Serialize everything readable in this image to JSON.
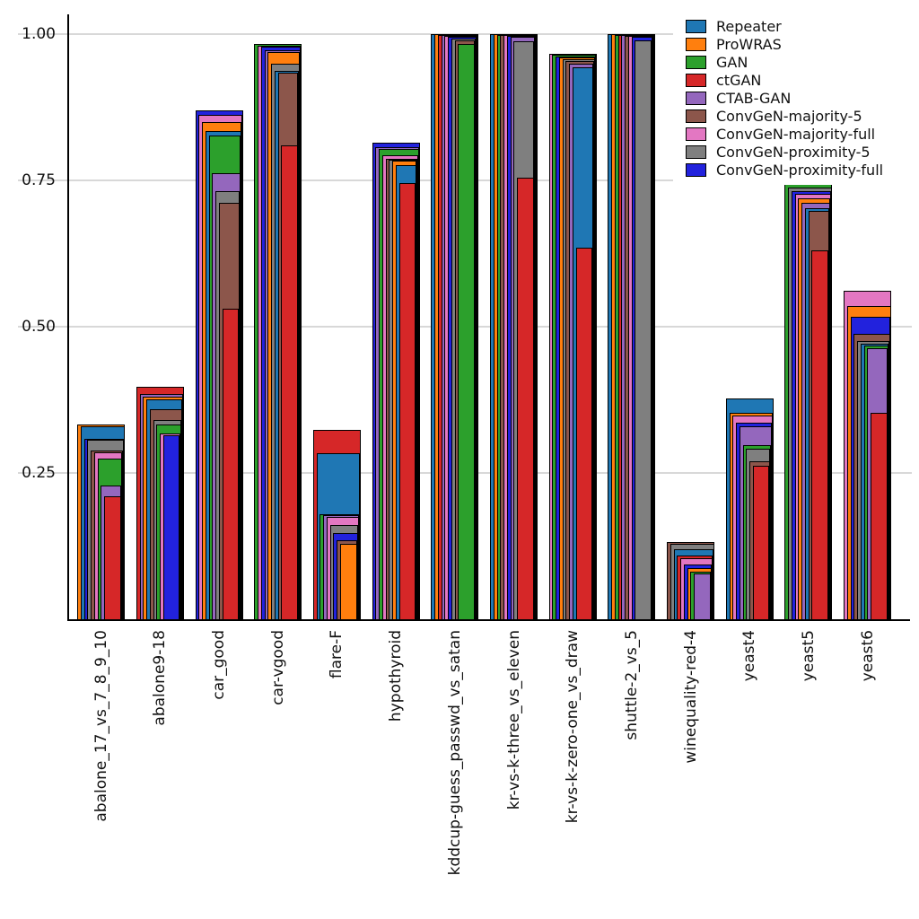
{
  "figure": {
    "background": "#ffffff",
    "grid_color": "#d8d8d8",
    "axis_color": "#000000"
  },
  "chart_data": {
    "type": "bar",
    "style": "overlaid-nested-bars-per-category-sorted-descending",
    "title": "",
    "xlabel": "",
    "ylabel": "",
    "ylim": [
      0,
      1.02
    ],
    "grid": "horizontal",
    "legend_position": "top-right",
    "yticks": [
      {
        "value": 0.25,
        "label": "0.25"
      },
      {
        "value": 0.5,
        "label": "0.50"
      },
      {
        "value": 0.75,
        "label": "0.75"
      },
      {
        "value": 1.0,
        "label": "1.00"
      }
    ],
    "categories": [
      "abalone_17_vs_7_8_9_10",
      "abalone9-18",
      "car_good",
      "car-vgood",
      "flare-F",
      "hypothyroid",
      "kddcup-guess_passwd_vs_satan",
      "kr-vs-k-three_vs_eleven",
      "kr-vs-k-zero-one_vs_draw",
      "shuttle-2_vs_5",
      "winequality-red-4",
      "yeast4",
      "yeast5",
      "yeast6"
    ],
    "series": [
      {
        "name": "Repeater",
        "color": "#1f77b4",
        "values": [
          0.329,
          0.376,
          0.835,
          0.937,
          0.283,
          0.776,
          1.0,
          1.0,
          0.944,
          1.0,
          0.119,
          0.377,
          0.703,
          0.471
        ]
      },
      {
        "name": "ProWRAS",
        "color": "#ff7f0e",
        "values": [
          0.333,
          0.38,
          0.849,
          0.97,
          0.129,
          0.784,
          0.9995,
          0.9995,
          0.96,
          0.9995,
          0.088,
          0.352,
          0.72,
          0.536
        ]
      },
      {
        "name": "GAN",
        "color": "#2ca02c",
        "values": [
          0.275,
          0.333,
          0.827,
          0.983,
          0.18,
          0.803,
          0.983,
          0.999,
          0.964,
          0.999,
          0.082,
          0.298,
          0.746,
          0.468
        ]
      },
      {
        "name": "ctGAN",
        "color": "#d62728",
        "values": [
          0.21,
          0.398,
          0.531,
          0.81,
          0.324,
          0.746,
          0.999,
          0.755,
          0.635,
          0.9985,
          0.109,
          0.263,
          0.63,
          0.353
        ]
      },
      {
        "name": "CTAB-GAN",
        "color": "#9467bd",
        "values": [
          0.229,
          0.385,
          0.762,
          0.973,
          0.178,
          0.807,
          0.9985,
          0.995,
          0.949,
          0.998,
          0.078,
          0.33,
          0.712,
          0.463
        ]
      },
      {
        "name": "ConvGeN-majority-5",
        "color": "#8c564b",
        "values": [
          0.289,
          0.359,
          0.712,
          0.934,
          0.135,
          0.787,
          0.99,
          0.9985,
          0.954,
          0.9975,
          0.132,
          0.27,
          0.698,
          0.488
        ]
      },
      {
        "name": "ConvGeN-majority-full",
        "color": "#e377c2",
        "values": [
          0.285,
          0.317,
          0.862,
          0.98,
          0.175,
          0.793,
          0.997,
          0.998,
          0.967,
          0.997,
          0.104,
          0.348,
          0.727,
          0.561
        ]
      },
      {
        "name": "ConvGeN-proximity-5",
        "color": "#7f7f7f",
        "values": [
          0.306,
          0.34,
          0.731,
          0.949,
          0.161,
          0.786,
          0.992,
          0.987,
          0.957,
          0.989,
          0.129,
          0.292,
          0.738,
          0.475
        ]
      },
      {
        "name": "ConvGeN-proximity-full",
        "color": "#2222dd",
        "values": [
          0.309,
          0.314,
          0.869,
          0.978,
          0.148,
          0.814,
          0.995,
          0.9975,
          0.962,
          0.995,
          0.094,
          0.336,
          0.732,
          0.517
        ]
      }
    ]
  }
}
